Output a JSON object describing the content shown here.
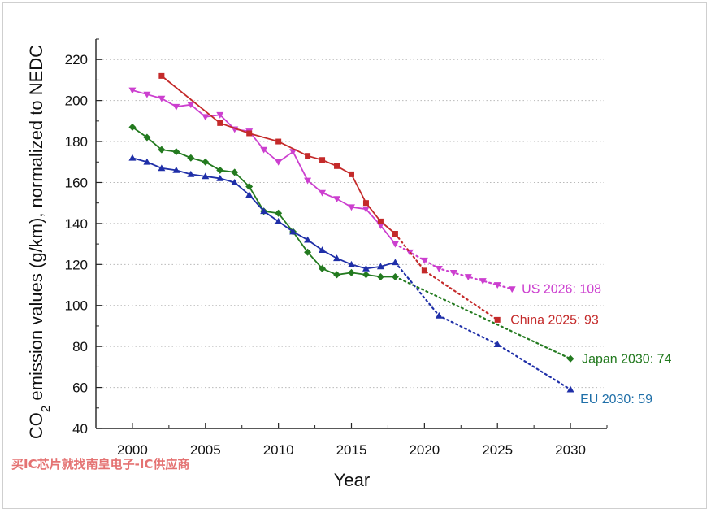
{
  "chart_data": {
    "type": "line",
    "xlabel": "Year",
    "ylabel": "CO2 emission values (g/km), normalized to NEDC",
    "xlim": [
      1997.5,
      2032.5
    ],
    "ylim": [
      40,
      230
    ],
    "x_ticks": [
      2000,
      2005,
      2010,
      2015,
      2020,
      2025,
      2030
    ],
    "y_ticks": [
      40,
      60,
      80,
      100,
      120,
      140,
      160,
      180,
      200,
      220
    ],
    "grid": "horizontal dotted",
    "legend": "none",
    "series": [
      {
        "color": "#cc3fcf",
        "marker": "triangle-down",
        "x": [
          2000,
          2001,
          2002,
          2003,
          2004,
          2005,
          2006,
          2007,
          2008,
          2009,
          2010,
          2011,
          2012,
          2013,
          2014,
          2015,
          2016,
          2017,
          2018
        ],
        "y": [
          205,
          203,
          201,
          197,
          198,
          192,
          193,
          186,
          185,
          176,
          170,
          175,
          161,
          155,
          152,
          148,
          147,
          139,
          130
        ],
        "projection_x": [
          2019,
          2020,
          2021,
          2022,
          2023,
          2024,
          2025,
          2026
        ],
        "projection_y": [
          126,
          122,
          118,
          116,
          114,
          112,
          110,
          108
        ],
        "target_label": "US 2026: 108"
      },
      {
        "color": "#c42a2a",
        "marker": "square",
        "x": [
          2002,
          2006,
          2008,
          2010,
          2012,
          2013,
          2014,
          2015,
          2016,
          2017,
          2018
        ],
        "y": [
          212,
          189,
          184,
          180,
          173,
          171,
          168,
          164,
          150,
          141,
          135
        ],
        "projection_x": [
          2020,
          2025
        ],
        "projection_y": [
          117,
          93
        ],
        "target_label": "China 2025: 93"
      },
      {
        "color": "#237a1f",
        "marker": "diamond",
        "x": [
          2000,
          2001,
          2002,
          2003,
          2004,
          2005,
          2006,
          2007,
          2008,
          2009,
          2010,
          2011,
          2012,
          2013,
          2014,
          2015,
          2016,
          2017,
          2018
        ],
        "y": [
          187,
          182,
          176,
          175,
          172,
          170,
          166,
          165,
          158,
          146,
          145,
          136,
          126,
          118,
          115,
          116,
          115,
          114,
          114
        ],
        "projection_x": [
          2030
        ],
        "projection_y": [
          74
        ],
        "target_label": "Japan 2030: 74"
      },
      {
        "color": "#1f2fa8",
        "marker": "triangle-up",
        "x": [
          2000,
          2001,
          2002,
          2003,
          2004,
          2005,
          2006,
          2007,
          2008,
          2009,
          2010,
          2011,
          2012,
          2013,
          2014,
          2015,
          2016,
          2017,
          2018
        ],
        "y": [
          172,
          170,
          167,
          166,
          164,
          163,
          162,
          160,
          154,
          146,
          141,
          136,
          132,
          127,
          123,
          120,
          118,
          119,
          121
        ],
        "projection_x": [
          2021,
          2025,
          2030
        ],
        "projection_y": [
          95,
          81,
          59
        ],
        "target_label": "EU 2030: 59"
      }
    ]
  },
  "label_colors": [
    "#cc3fcf",
    "#c42a2a",
    "#237a1f",
    "#1f6fa8"
  ],
  "watermark": "买IC芯片就找南皇电子-IC供应商"
}
